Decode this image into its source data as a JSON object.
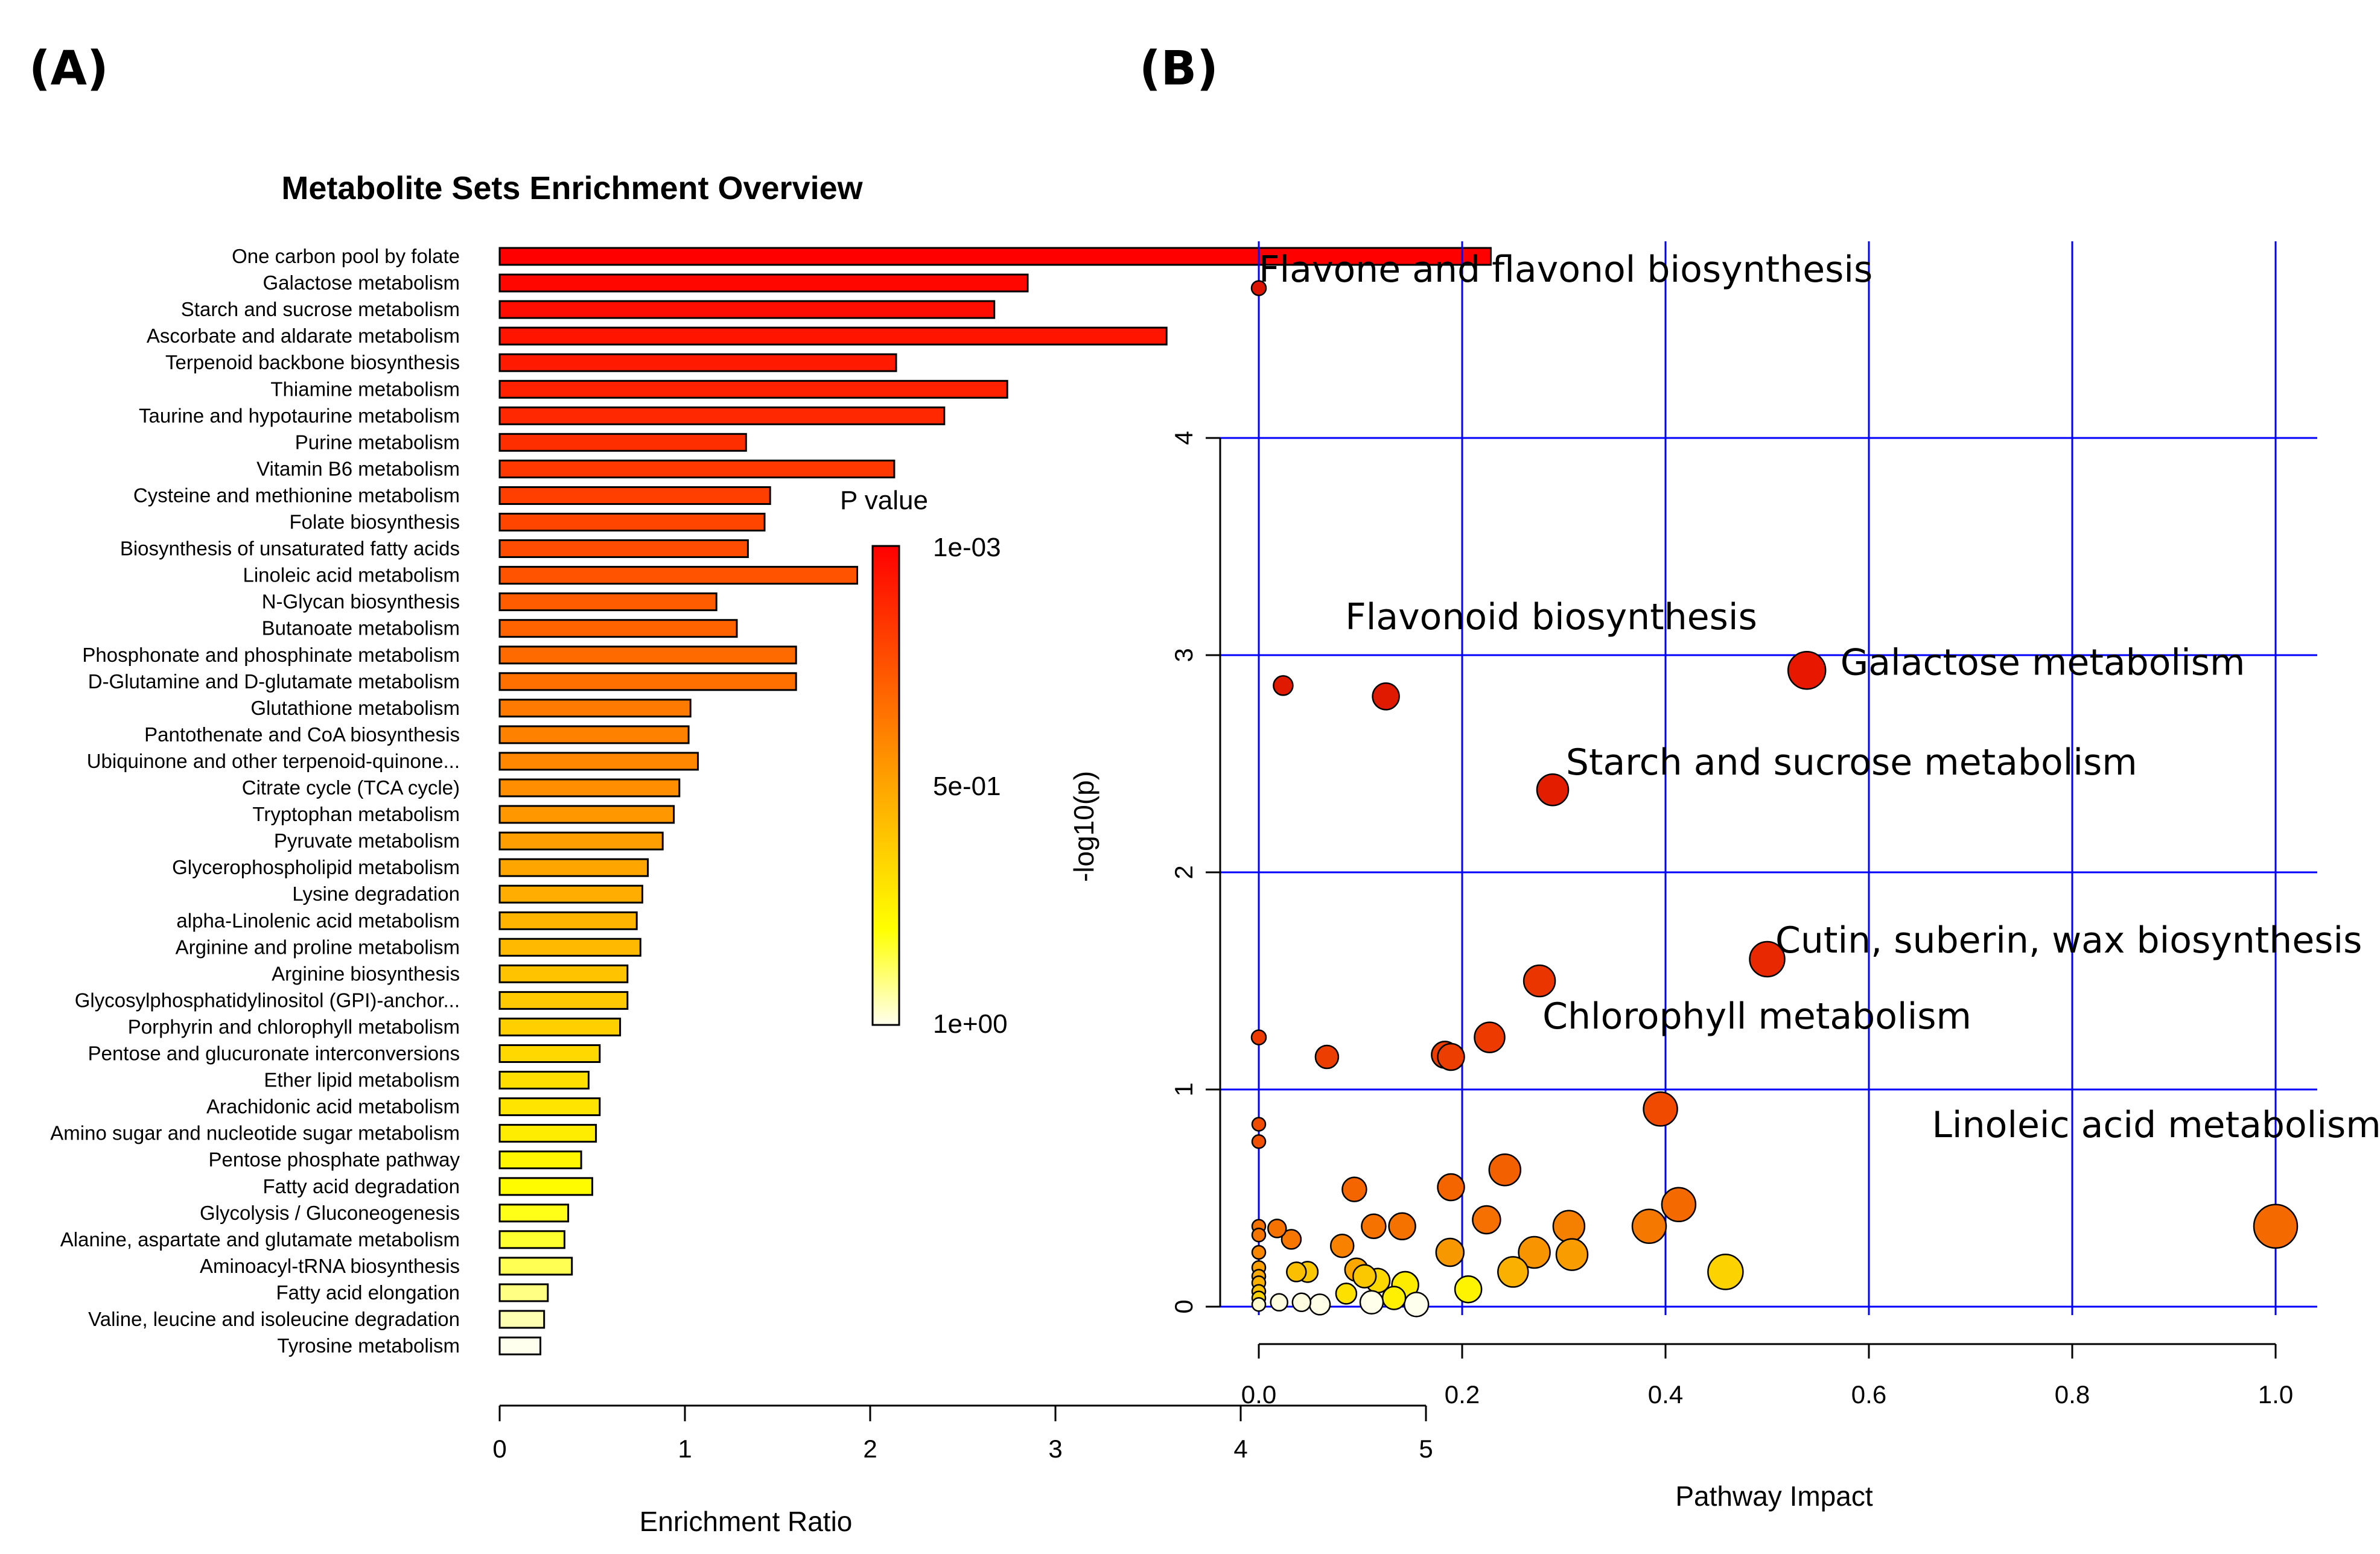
{
  "panel_labels": [
    "(A)",
    "(B)"
  ],
  "chart_data": [
    {
      "type": "bar",
      "orientation": "horizontal",
      "title": "Metabolite Sets Enrichment Overview",
      "xlabel": "Enrichment Ratio",
      "ylabel": "",
      "xlim": [
        0,
        5
      ],
      "xticks": [
        0,
        1,
        2,
        3,
        4,
        5
      ],
      "color_scale": {
        "low": "#ff0000",
        "mid": "#ffa500",
        "high_mid": "#ffff00",
        "high": "#ffffee"
      },
      "legend": {
        "title": "P value",
        "ticks": [
          "1e-03",
          "5e-01",
          "1e+00"
        ],
        "placement": "right"
      },
      "categories": [
        "One carbon pool by folate",
        "Galactose metabolism",
        "Starch and sucrose metabolism",
        "Ascorbate and aldarate metabolism",
        "Terpenoid backbone biosynthesis",
        "Thiamine metabolism",
        "Taurine and hypotaurine metabolism",
        "Purine metabolism",
        "Vitamin B6 metabolism",
        "Cysteine and methionine metabolism",
        "Folate biosynthesis",
        "Biosynthesis of unsaturated fatty acids",
        "Linoleic acid metabolism",
        "N-Glycan biosynthesis",
        "Butanoate metabolism",
        "Phosphonate and phosphinate metabolism",
        "D-Glutamine and D-glutamate metabolism",
        "Glutathione metabolism",
        "Pantothenate and CoA biosynthesis",
        "Ubiquinone and other terpenoid-quinone...",
        "Citrate cycle (TCA cycle)",
        "Tryptophan metabolism",
        "Pyruvate metabolism",
        "Glycerophospholipid metabolism",
        "Lysine degradation",
        "alpha-Linolenic acid metabolism",
        "Arginine and proline metabolism",
        "Arginine biosynthesis",
        "Glycosylphosphatidylinositol (GPI)-anchor...",
        "Porphyrin and chlorophyll metabolism",
        "Pentose and glucuronate interconversions",
        "Ether lipid metabolism",
        "Arachidonic acid metabolism",
        "Amino sugar and nucleotide sugar metabolism",
        "Pentose phosphate pathway",
        "Fatty acid degradation",
        "Glycolysis / Gluconeogenesis",
        "Alanine, aspartate and glutamate metabolism",
        "Aminoacyl-tRNA biosynthesis",
        "Fatty acid elongation",
        "Valine, leucine and isoleucine degradation",
        "Tyrosine metabolism"
      ],
      "values": [
        5.35,
        2.85,
        2.67,
        3.6,
        2.14,
        2.74,
        2.4,
        1.33,
        2.13,
        1.46,
        1.43,
        1.34,
        1.93,
        1.17,
        1.28,
        1.6,
        1.6,
        1.03,
        1.02,
        1.07,
        0.97,
        0.94,
        0.88,
        0.8,
        0.77,
        0.74,
        0.76,
        0.69,
        0.69,
        0.65,
        0.54,
        0.48,
        0.54,
        0.52,
        0.44,
        0.5,
        0.37,
        0.35,
        0.39,
        0.26,
        0.24,
        0.22
      ],
      "color_rank": [
        0.0,
        0.02,
        0.04,
        0.06,
        0.08,
        0.1,
        0.12,
        0.14,
        0.17,
        0.19,
        0.21,
        0.23,
        0.25,
        0.28,
        0.3,
        0.32,
        0.34,
        0.37,
        0.39,
        0.41,
        0.43,
        0.46,
        0.48,
        0.5,
        0.53,
        0.55,
        0.57,
        0.6,
        0.62,
        0.64,
        0.67,
        0.69,
        0.71,
        0.74,
        0.77,
        0.79,
        0.82,
        0.84,
        0.87,
        0.91,
        0.95,
        1.0
      ]
    },
    {
      "type": "scatter",
      "title": "",
      "xlabel": "Pathway Impact",
      "ylabel": "-log10(p)",
      "xlim": [
        0,
        1.0
      ],
      "ylim": [
        0,
        4.75
      ],
      "xticks": [
        "0.0",
        "0.2",
        "0.4",
        "0.6",
        "0.8",
        "1.0"
      ],
      "yticks": [
        "0",
        "1",
        "2",
        "3",
        "4"
      ],
      "grid": true,
      "grid_color": "#0000ff",
      "points": [
        {
          "x": 0.0,
          "y": 4.69,
          "size": 12,
          "color": "#dd1500"
        },
        {
          "x": 0.024,
          "y": 2.86,
          "size": 16,
          "color": "#e01a00"
        },
        {
          "x": 0.125,
          "y": 2.81,
          "size": 22,
          "color": "#e01a00"
        },
        {
          "x": 0.539,
          "y": 2.93,
          "size": 31,
          "color": "#e81800"
        },
        {
          "x": 0.289,
          "y": 2.38,
          "size": 26,
          "color": "#e31e00"
        },
        {
          "x": 0.5,
          "y": 1.6,
          "size": 29,
          "color": "#e82800"
        },
        {
          "x": 0.276,
          "y": 1.5,
          "size": 26,
          "color": "#ea3500"
        },
        {
          "x": 0.0,
          "y": 1.24,
          "size": 12,
          "color": "#ec3a00"
        },
        {
          "x": 0.067,
          "y": 1.15,
          "size": 19,
          "color": "#ec3e00"
        },
        {
          "x": 0.183,
          "y": 1.16,
          "size": 22,
          "color": "#ec3e00"
        },
        {
          "x": 0.189,
          "y": 1.15,
          "size": 22,
          "color": "#ec3e00"
        },
        {
          "x": 0.227,
          "y": 1.24,
          "size": 25,
          "color": "#ec3a00"
        },
        {
          "x": 0.395,
          "y": 0.91,
          "size": 28,
          "color": "#ef4a00"
        },
        {
          "x": 0.0,
          "y": 0.84,
          "size": 11,
          "color": "#f04c00"
        },
        {
          "x": 0.0,
          "y": 0.76,
          "size": 11,
          "color": "#f15000"
        },
        {
          "x": 0.242,
          "y": 0.63,
          "size": 26,
          "color": "#f36000"
        },
        {
          "x": 0.094,
          "y": 0.54,
          "size": 20,
          "color": "#f46500"
        },
        {
          "x": 0.189,
          "y": 0.55,
          "size": 22,
          "color": "#f46500"
        },
        {
          "x": 0.0,
          "y": 0.37,
          "size": 11,
          "color": "#f57100"
        },
        {
          "x": 0.0,
          "y": 0.33,
          "size": 11,
          "color": "#f57400"
        },
        {
          "x": 0.018,
          "y": 0.36,
          "size": 15,
          "color": "#f57200"
        },
        {
          "x": 0.032,
          "y": 0.31,
          "size": 16,
          "color": "#f67600"
        },
        {
          "x": 0.0,
          "y": 0.25,
          "size": 11,
          "color": "#f88600"
        },
        {
          "x": 0.082,
          "y": 0.28,
          "size": 19,
          "color": "#f88200"
        },
        {
          "x": 0.113,
          "y": 0.37,
          "size": 20,
          "color": "#f57200"
        },
        {
          "x": 0.141,
          "y": 0.37,
          "size": 22,
          "color": "#f57200"
        },
        {
          "x": 0.224,
          "y": 0.4,
          "size": 23,
          "color": "#f57000"
        },
        {
          "x": 0.305,
          "y": 0.37,
          "size": 26,
          "color": "#f58000"
        },
        {
          "x": 0.384,
          "y": 0.37,
          "size": 28,
          "color": "#f57800"
        },
        {
          "x": 0.413,
          "y": 0.47,
          "size": 28,
          "color": "#f46a00"
        },
        {
          "x": 1.0,
          "y": 0.37,
          "size": 36,
          "color": "#f56a00"
        },
        {
          "x": 0.0,
          "y": 0.18,
          "size": 11,
          "color": "#f9a000"
        },
        {
          "x": 0.0,
          "y": 0.14,
          "size": 11,
          "color": "#f9a800"
        },
        {
          "x": 0.0,
          "y": 0.11,
          "size": 11,
          "color": "#fab000"
        },
        {
          "x": 0.0,
          "y": 0.07,
          "size": 11,
          "color": "#fbc000"
        },
        {
          "x": 0.0,
          "y": 0.04,
          "size": 11,
          "color": "#fcd400"
        },
        {
          "x": 0.0,
          "y": 0.01,
          "size": 11,
          "color": "#fffcd0"
        },
        {
          "x": 0.037,
          "y": 0.16,
          "size": 16,
          "color": "#fac000"
        },
        {
          "x": 0.048,
          "y": 0.16,
          "size": 17,
          "color": "#fbc800"
        },
        {
          "x": 0.096,
          "y": 0.17,
          "size": 19,
          "color": "#faa800"
        },
        {
          "x": 0.104,
          "y": 0.14,
          "size": 19,
          "color": "#fbc800"
        },
        {
          "x": 0.117,
          "y": 0.12,
          "size": 20,
          "color": "#fcd800"
        },
        {
          "x": 0.144,
          "y": 0.1,
          "size": 22,
          "color": "#fdec00"
        },
        {
          "x": 0.188,
          "y": 0.25,
          "size": 23,
          "color": "#f89800"
        },
        {
          "x": 0.25,
          "y": 0.16,
          "size": 25,
          "color": "#f9b000"
        },
        {
          "x": 0.271,
          "y": 0.25,
          "size": 26,
          "color": "#f89400"
        },
        {
          "x": 0.308,
          "y": 0.24,
          "size": 26,
          "color": "#f89c00"
        },
        {
          "x": 0.459,
          "y": 0.16,
          "size": 29,
          "color": "#fcd200"
        },
        {
          "x": 0.086,
          "y": 0.06,
          "size": 17,
          "color": "#fde000"
        },
        {
          "x": 0.133,
          "y": 0.04,
          "size": 19,
          "color": "#fef000"
        },
        {
          "x": 0.206,
          "y": 0.08,
          "size": 22,
          "color": "#fef400"
        },
        {
          "x": 0.02,
          "y": 0.02,
          "size": 14,
          "color": "#fffde0"
        },
        {
          "x": 0.042,
          "y": 0.02,
          "size": 15,
          "color": "#fffde0"
        },
        {
          "x": 0.06,
          "y": 0.01,
          "size": 17,
          "color": "#ffffe8"
        },
        {
          "x": 0.111,
          "y": 0.02,
          "size": 19,
          "color": "#ffffea"
        },
        {
          "x": 0.155,
          "y": 0.01,
          "size": 20,
          "color": "#ffffee"
        }
      ],
      "annotations": [
        {
          "text": "Flavone and flavonol biosynthesis",
          "x": 0.0,
          "y": 4.72
        },
        {
          "text": "Flavonoid biosynthesis",
          "x": 0.085,
          "y": 3.12
        },
        {
          "text": "Galactose metabolism",
          "x": 0.572,
          "y": 2.91
        },
        {
          "text": "Starch and sucrose metabolism",
          "x": 0.302,
          "y": 2.45
        },
        {
          "text": "Cutin, suberin, wax biosynthesis",
          "x": 0.508,
          "y": 1.63
        },
        {
          "text": "Chlorophyll metabolism",
          "x": 0.279,
          "y": 1.28
        },
        {
          "text": "Linoleic acid metabolism",
          "x": 0.662,
          "y": 0.78
        }
      ]
    }
  ]
}
